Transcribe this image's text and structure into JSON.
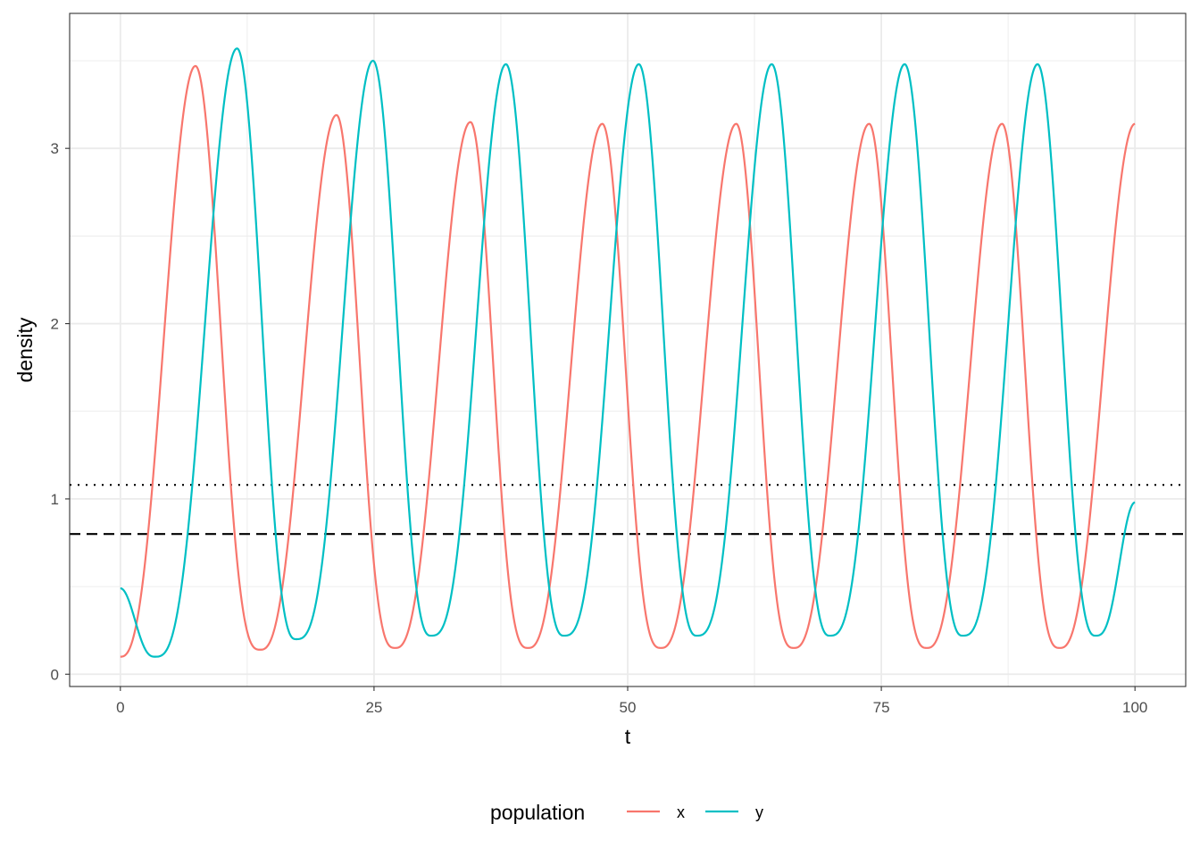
{
  "chart_data": {
    "type": "line",
    "title": "",
    "xlabel": "t",
    "ylabel": "density",
    "xlim": [
      -5,
      105
    ],
    "ylim": [
      -0.07,
      3.77
    ],
    "x_ticks": [
      0,
      25,
      50,
      75,
      100
    ],
    "x_tick_labels": [
      "0",
      "25",
      "50",
      "75",
      "100"
    ],
    "y_ticks": [
      0,
      1,
      2,
      3
    ],
    "y_tick_labels": [
      "0",
      "1",
      "2",
      "3"
    ],
    "grid": true,
    "legend": {
      "title": "population",
      "placement": "bottom"
    },
    "colors": {
      "x": "#F8766D",
      "y": "#00BFC4"
    },
    "reference_lines": [
      {
        "y": 1.08,
        "style": "dotted",
        "color": "#000000"
      },
      {
        "y": 0.8,
        "style": "dashed",
        "color": "#000000"
      }
    ],
    "series": [
      {
        "name": "x",
        "color": "#F8766D",
        "start": [
          0,
          0.1
        ],
        "end": [
          100,
          3.14
        ],
        "peaks": [
          [
            7.4,
            3.47
          ],
          [
            21.3,
            3.19
          ],
          [
            34.5,
            3.15
          ],
          [
            47.5,
            3.14
          ],
          [
            60.7,
            3.14
          ],
          [
            73.8,
            3.14
          ],
          [
            86.9,
            3.14
          ]
        ],
        "troughs": [
          [
            13.8,
            0.14
          ],
          [
            27.1,
            0.15
          ],
          [
            40.2,
            0.15
          ],
          [
            53.3,
            0.15
          ],
          [
            66.4,
            0.15
          ],
          [
            79.5,
            0.15
          ],
          [
            92.6,
            0.15
          ]
        ]
      },
      {
        "name": "y",
        "color": "#00BFC4",
        "start": [
          0,
          0.49
        ],
        "end": [
          100,
          0.98
        ],
        "peaks": [
          [
            11.5,
            3.57
          ],
          [
            24.9,
            3.5
          ],
          [
            38.0,
            3.48
          ],
          [
            51.1,
            3.48
          ],
          [
            64.2,
            3.48
          ],
          [
            77.3,
            3.48
          ],
          [
            90.4,
            3.48
          ]
        ],
        "troughs": [
          [
            3.4,
            0.1
          ],
          [
            17.3,
            0.2
          ],
          [
            30.6,
            0.22
          ],
          [
            43.7,
            0.22
          ],
          [
            56.8,
            0.22
          ],
          [
            69.9,
            0.22
          ],
          [
            83.0,
            0.22
          ],
          [
            96.1,
            0.22
          ]
        ]
      }
    ]
  }
}
